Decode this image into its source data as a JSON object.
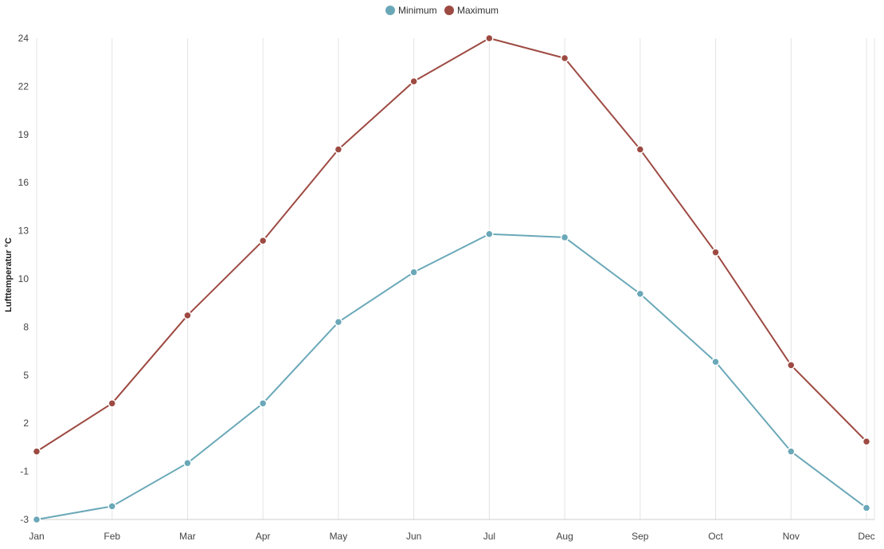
{
  "chart_data": {
    "type": "line",
    "categories": [
      "Jan",
      "Feb",
      "Mar",
      "Apr",
      "May",
      "Jun",
      "Jul",
      "Aug",
      "Sep",
      "Oct",
      "Nov",
      "Dec"
    ],
    "series": [
      {
        "name": "Minimum",
        "color": "#6aa8b8",
        "values": [
          -3.0,
          -2.2,
          0.4,
          4.0,
          8.9,
          11.9,
          14.2,
          14.0,
          10.6,
          6.5,
          1.1,
          -2.3
        ]
      },
      {
        "name": "Maximum",
        "color": "#9d4a42",
        "values": [
          1.1,
          4.0,
          9.3,
          13.8,
          19.3,
          23.4,
          26.0,
          24.8,
          19.3,
          13.1,
          6.3,
          1.7
        ]
      }
    ],
    "ylabel": "Lufttemperatur °C",
    "yticks": [
      "-3",
      "-1",
      "2",
      "5",
      "8",
      "10",
      "13",
      "16",
      "19",
      "22",
      "24"
    ],
    "ylim": [
      -3,
      26
    ],
    "grid": "vertical",
    "legend": "top-center"
  }
}
